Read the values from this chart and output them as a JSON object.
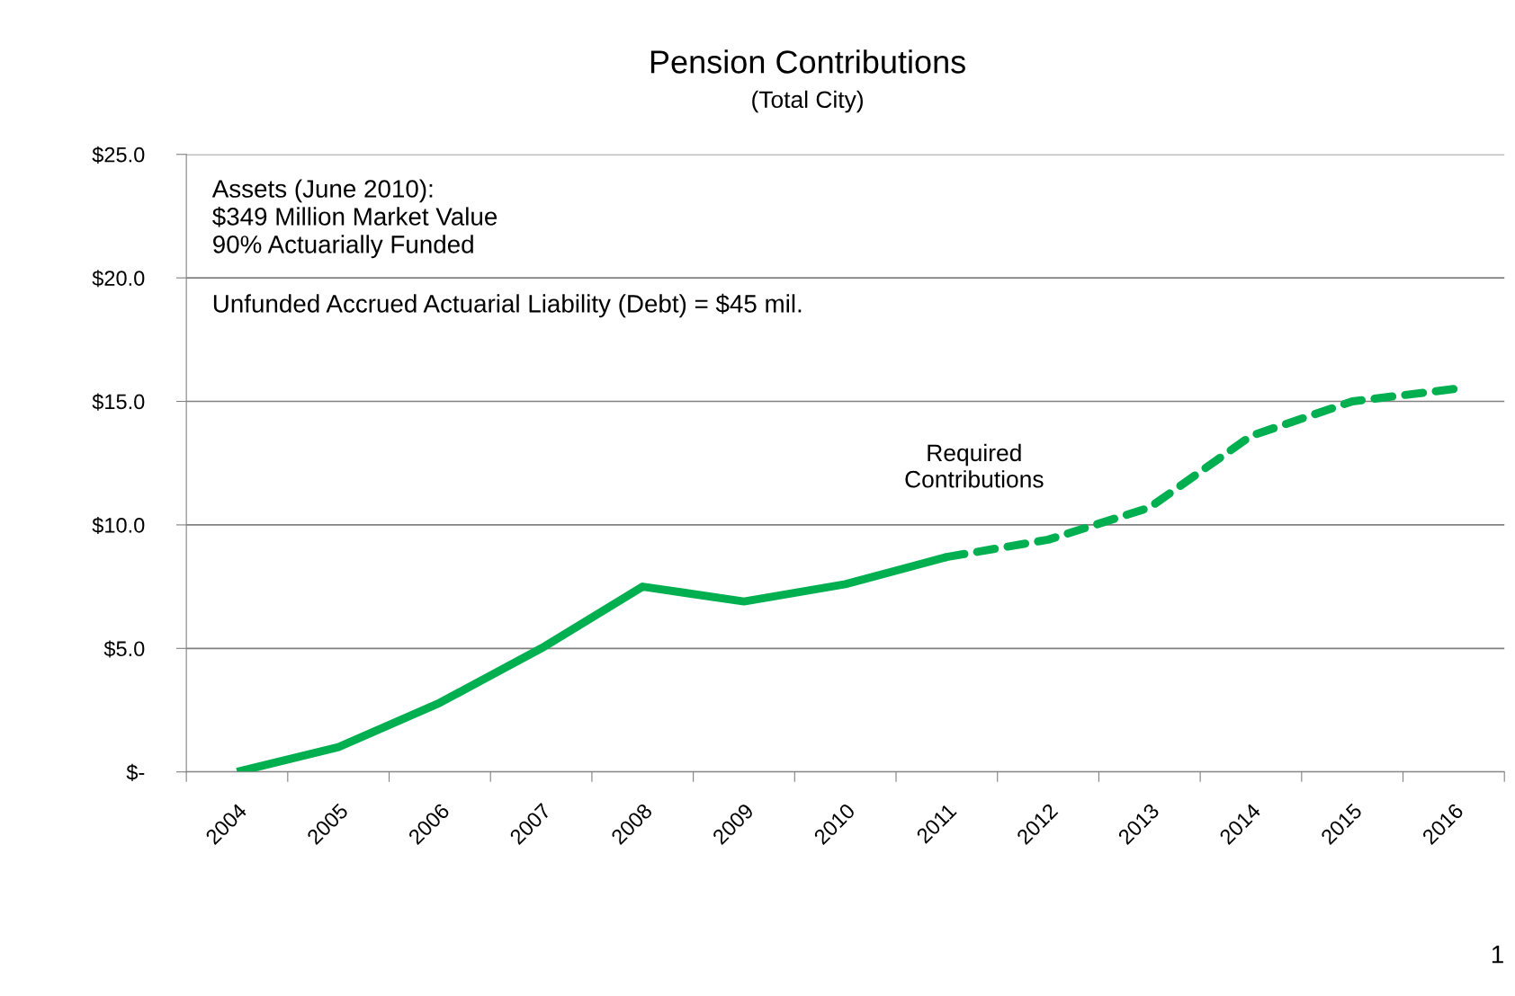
{
  "chart_data": {
    "type": "line",
    "title": "Pension Contributions",
    "subtitle": "(Total City)",
    "categories": [
      "2004",
      "2005",
      "2006",
      "2007",
      "2008",
      "2009",
      "2010",
      "2011",
      "2012",
      "2013",
      "2014",
      "2015",
      "2016"
    ],
    "series": [
      {
        "color": "#00b050",
        "line_style": "solid",
        "values": [
          0.0,
          1.0,
          2.8,
          5.0,
          7.5,
          6.9,
          7.6,
          8.7,
          null,
          null,
          null,
          null,
          null
        ]
      },
      {
        "color": "#00b050",
        "line_style": "dashed",
        "values": [
          null,
          null,
          null,
          null,
          null,
          null,
          null,
          8.7,
          9.4,
          10.7,
          13.6,
          15.0,
          15.5
        ]
      }
    ],
    "ylim": [
      0,
      25
    ],
    "yticks": [
      {
        "value": 0,
        "label": "$-"
      },
      {
        "value": 5,
        "label": "$5.0"
      },
      {
        "value": 10,
        "label": "$10.0"
      },
      {
        "value": 15,
        "label": "$15.0"
      },
      {
        "value": 20,
        "label": "$20.0"
      },
      {
        "value": 25,
        "label": "$25.0"
      }
    ],
    "grid": "y",
    "legend": false,
    "marker": "none",
    "annotations": [
      "Assets (June 2010):\n$349 Million Market Value\n90% Actuarially Funded",
      "Unfunded Accrued Actuarial Liability (Debt) = $45 mil.",
      "Required\nContributions",
      "1"
    ]
  }
}
